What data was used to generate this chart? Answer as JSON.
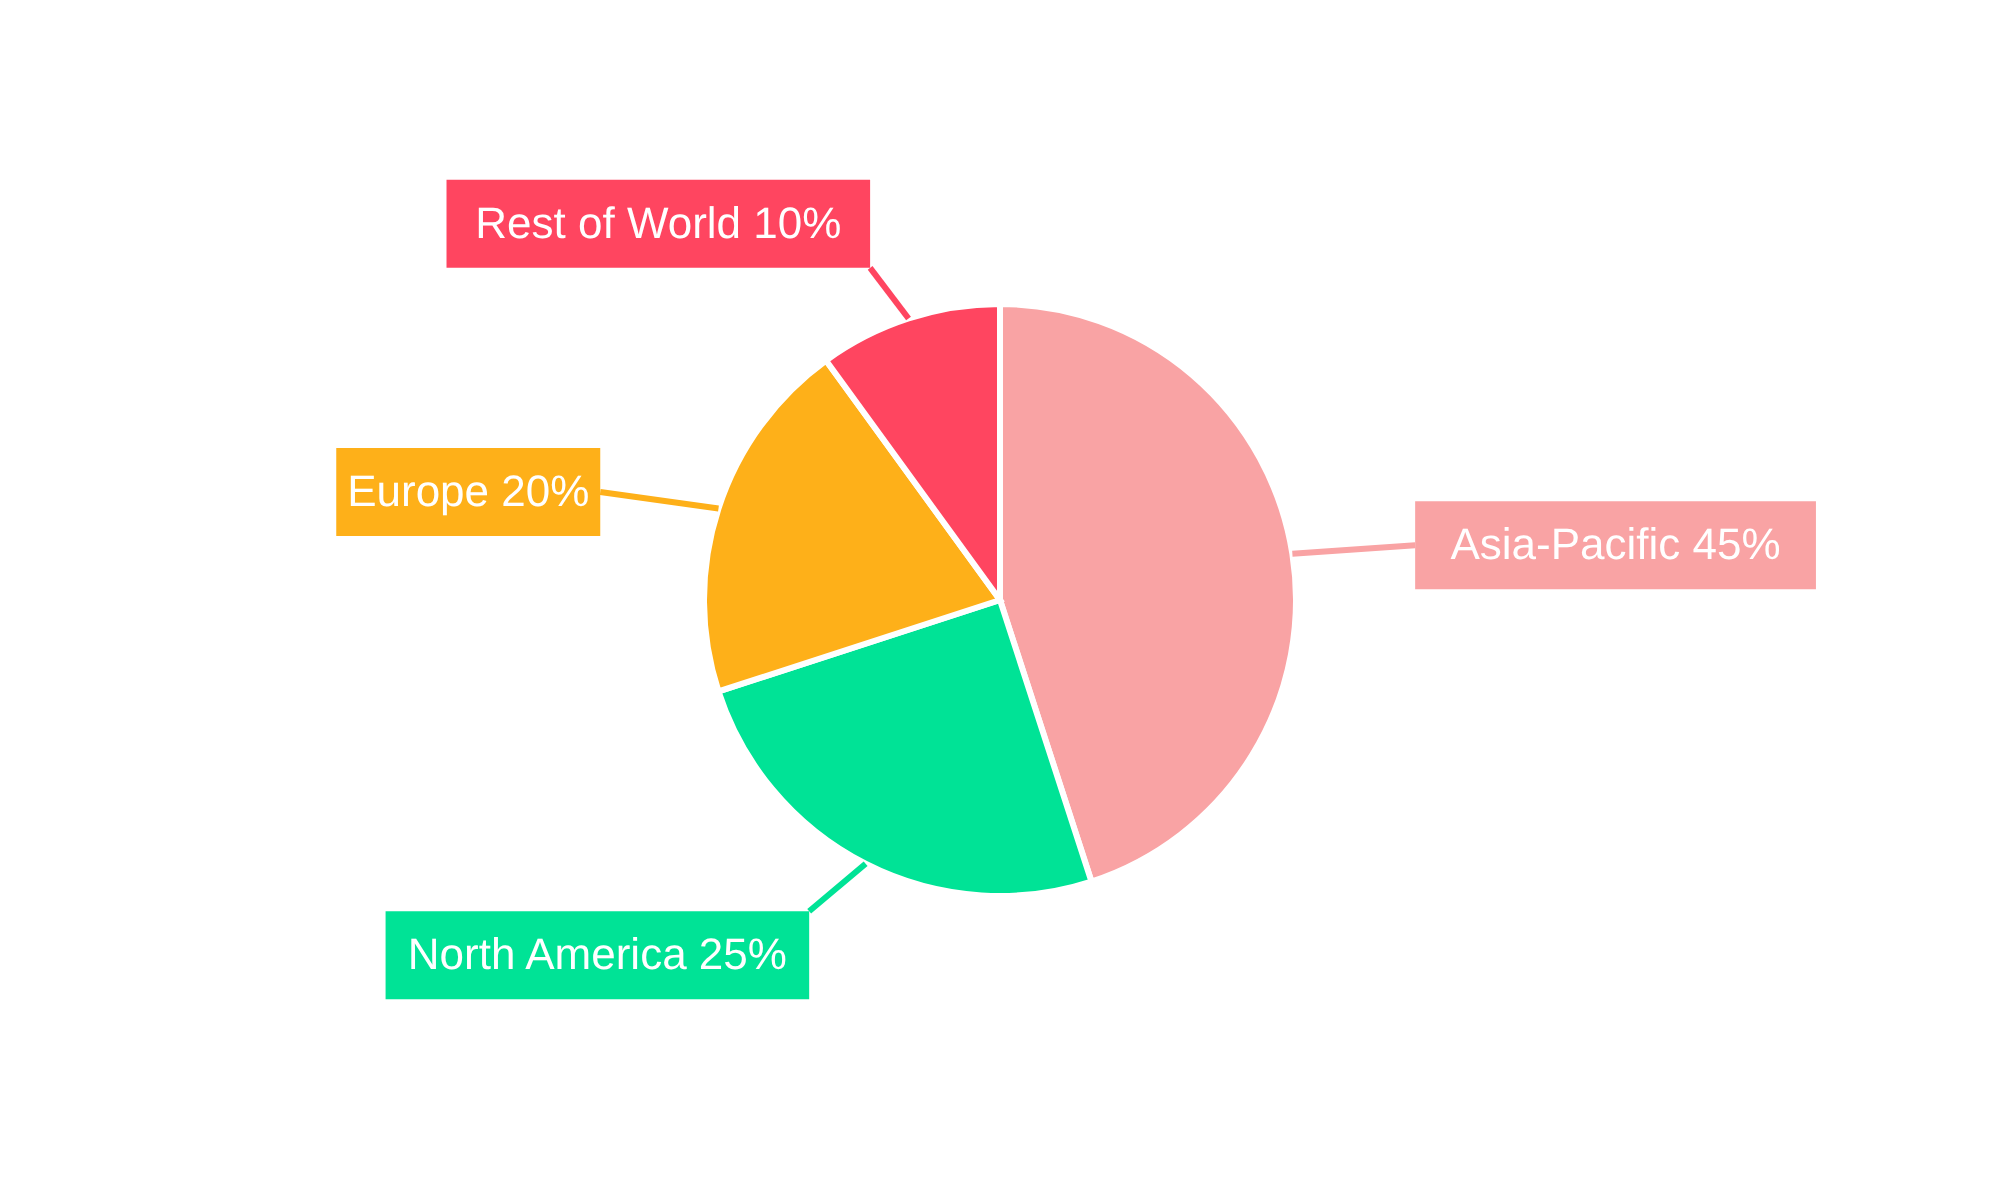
{
  "chart_data": {
    "type": "pie",
    "categories": [
      "Asia-Pacific",
      "North America",
      "Europe",
      "Rest of World"
    ],
    "values": [
      45,
      25,
      20,
      10
    ],
    "value_labels": [
      "45%",
      "25%",
      "20%",
      "10%"
    ],
    "colors": [
      "#f9a3a4",
      "#00e396",
      "#feb019",
      "#ff4560"
    ]
  }
}
